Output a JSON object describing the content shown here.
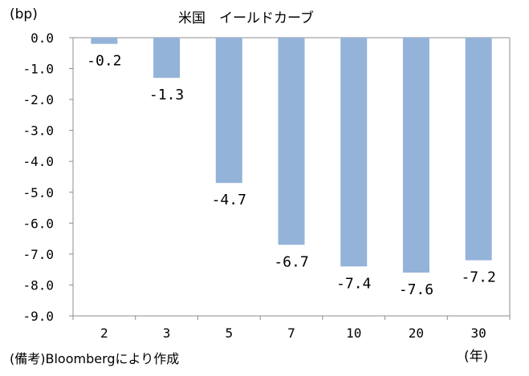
{
  "chart_data": {
    "type": "bar",
    "title": "米国　イールドカーブ",
    "ylabel": "(bp)",
    "xlabel": "",
    "x_unit": "(年)",
    "categories": [
      "2",
      "3",
      "5",
      "7",
      "10",
      "20",
      "30"
    ],
    "values": [
      -0.2,
      -1.3,
      -4.7,
      -6.7,
      -7.4,
      -7.6,
      -7.2
    ],
    "data_labels": [
      "-0.2",
      "-1.3",
      "-4.7",
      "-6.7",
      "-7.4",
      "-7.6",
      "-7.2"
    ],
    "ylim": [
      -9.0,
      0.0
    ],
    "yticks": [
      "0.0",
      "-1.0",
      "-2.0",
      "-3.0",
      "-4.0",
      "-5.0",
      "-6.0",
      "-7.0",
      "-8.0",
      "-9.0"
    ],
    "bar_color": "#94b3d9",
    "grid": false,
    "source_note": "(備考)Bloombergにより作成"
  }
}
